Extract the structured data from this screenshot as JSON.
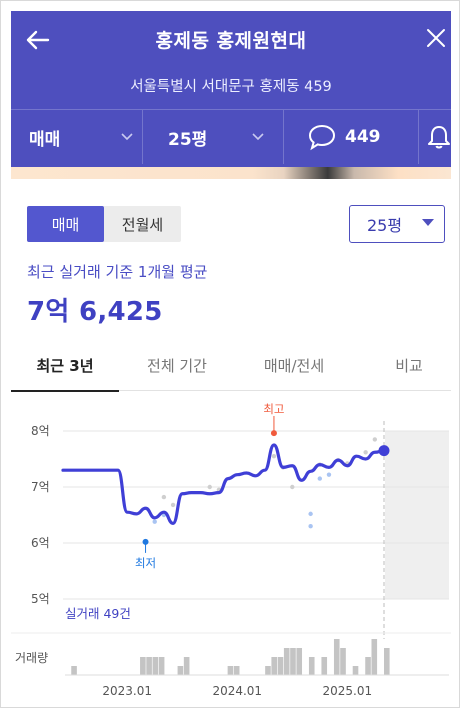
{
  "header": {
    "title": "홍제동 홍제원현대",
    "address": "서울특별시 서대문구 홍제동 459",
    "filters": {
      "deal_type": "매매",
      "area": "25평",
      "comment_count": "449"
    }
  },
  "toggle": {
    "options": [
      "매매",
      "전월세"
    ],
    "selected": "매매"
  },
  "area_select": {
    "value": "25평"
  },
  "summary": {
    "label": "최근 실거래 기준 1개월 평균",
    "price": "7억 6,425"
  },
  "tabs": [
    "최근 3년",
    "전체 기간",
    "매매/전세",
    "비교"
  ],
  "active_tab": "최근 3년",
  "colors": {
    "brand": "#4e4fbe",
    "line": "#3f3fd6",
    "max": "#f05a3c",
    "min": "#1f78e0"
  },
  "chart_data": {
    "type": "line",
    "y_unit": "억",
    "ylim": [
      5,
      8
    ],
    "yticks": [
      "8억",
      "7억",
      "6억",
      "5억"
    ],
    "xticks": [
      "2023.01",
      "2024.01",
      "2025.01"
    ],
    "series": [
      {
        "x": [
          "2022.06",
          "2022.08",
          "2022.10",
          "2022.12",
          "2023.01",
          "2023.02",
          "2023.03",
          "2023.04",
          "2023.05",
          "2023.06",
          "2023.07",
          "2023.08",
          "2023.09",
          "2023.10",
          "2023.11",
          "2023.12",
          "2024.01",
          "2024.02",
          "2024.03",
          "2024.04",
          "2024.05",
          "2024.06",
          "2024.07",
          "2024.08",
          "2024.09",
          "2024.10",
          "2024.11",
          "2024.12",
          "2025.01",
          "2025.02",
          "2025.03",
          "2025.04",
          "2025.05"
        ],
        "values": [
          7.3,
          7.3,
          7.3,
          7.3,
          6.55,
          6.52,
          6.62,
          6.45,
          6.55,
          6.35,
          6.88,
          6.9,
          6.9,
          6.88,
          6.9,
          7.15,
          7.22,
          7.25,
          7.2,
          7.3,
          7.75,
          7.35,
          7.38,
          7.12,
          7.28,
          7.4,
          7.35,
          7.48,
          7.38,
          7.55,
          7.5,
          7.62,
          7.65
        ]
      }
    ],
    "scatter": [
      {
        "x": "2023.05",
        "y": 6.82
      },
      {
        "x": "2023.05",
        "y": 6.5
      },
      {
        "x": "2023.06",
        "y": 6.68
      },
      {
        "x": "2023.04",
        "y": 6.38
      },
      {
        "x": "2023.10",
        "y": 7.0
      },
      {
        "x": "2023.11",
        "y": 6.95
      },
      {
        "x": "2024.05",
        "y": 7.55
      },
      {
        "x": "2024.06",
        "y": 7.35
      },
      {
        "x": "2024.07",
        "y": 7.0
      },
      {
        "x": "2024.09",
        "y": 6.52
      },
      {
        "x": "2024.10",
        "y": 7.4
      },
      {
        "x": "2024.11",
        "y": 7.22
      },
      {
        "x": "2024.12",
        "y": 7.48
      },
      {
        "x": "2025.01",
        "y": 7.42
      },
      {
        "x": "2025.03",
        "y": 7.62
      },
      {
        "x": "2025.04",
        "y": 7.85
      },
      {
        "x": "2024.09",
        "y": 6.3
      },
      {
        "x": "2024.10",
        "y": 7.15
      }
    ],
    "max_marker": {
      "label": "최고",
      "value": 7.82
    },
    "min_marker": {
      "label": "최저",
      "value": 6.02
    },
    "trade_count_label": "실거래 49건",
    "volume_label": "거래량",
    "volume": [
      0,
      1,
      0,
      0,
      0,
      0,
      0,
      0,
      0,
      0,
      0,
      0,
      2,
      2,
      2,
      2,
      0,
      0,
      1,
      2,
      0,
      0,
      0,
      0,
      0,
      0,
      1,
      1,
      0,
      0,
      0,
      0,
      1,
      2,
      2,
      3,
      3,
      3,
      0,
      2,
      0,
      2,
      0,
      4,
      3,
      0,
      1,
      0,
      2,
      4,
      0,
      3
    ]
  }
}
